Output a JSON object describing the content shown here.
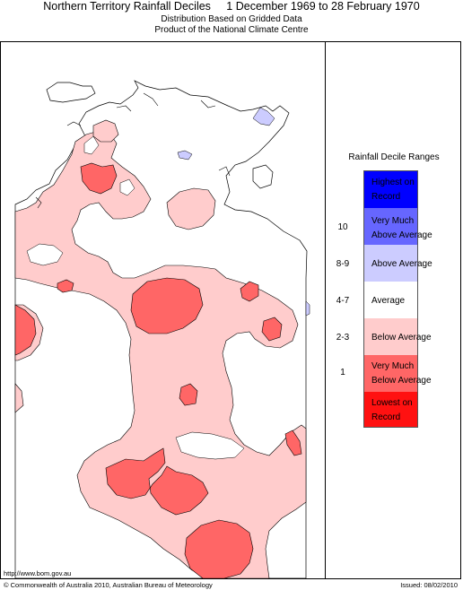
{
  "header": {
    "title": "Northern Territory Rainfall Deciles",
    "period": "1 December 1969 to 28 February 1970",
    "subtitle_1": "Distribution Based on Gridded Data",
    "subtitle_2": "Product of the National Climate Centre"
  },
  "legend": {
    "title": "Rainfall Decile Ranges",
    "items": [
      {
        "range": "",
        "label_1": "Highest on",
        "label_2": "Record",
        "color": "#0000ff"
      },
      {
        "range": "10",
        "label_1": "Very Much",
        "label_2": "Above Average",
        "color": "#6666ff"
      },
      {
        "range": "8-9",
        "label_1": "Above Average",
        "label_2": "",
        "color": "#ccccff"
      },
      {
        "range": "4-7",
        "label_1": "Average",
        "label_2": "",
        "color": "#ffffff"
      },
      {
        "range": "2-3",
        "label_1": "Below Average",
        "label_2": "",
        "color": "#ffcccc"
      },
      {
        "range": "1",
        "label_1": "Very Much",
        "label_2": "Below Average",
        "color": "#ff6666"
      },
      {
        "range": "",
        "label_1": "Lowest on",
        "label_2": "Record",
        "color": "#ff1111"
      }
    ]
  },
  "footer": {
    "url": "http://www.bom.gov.au",
    "copyright": "© Commonwealth of Australia 2010, Australian Bureau of Meteorology",
    "issued": "Issued: 08/02/2010"
  },
  "colors": {
    "below_average": "#ffcccc",
    "very_much_below": "#ff6666",
    "above_average": "#ccccff",
    "outline": "#000000"
  }
}
